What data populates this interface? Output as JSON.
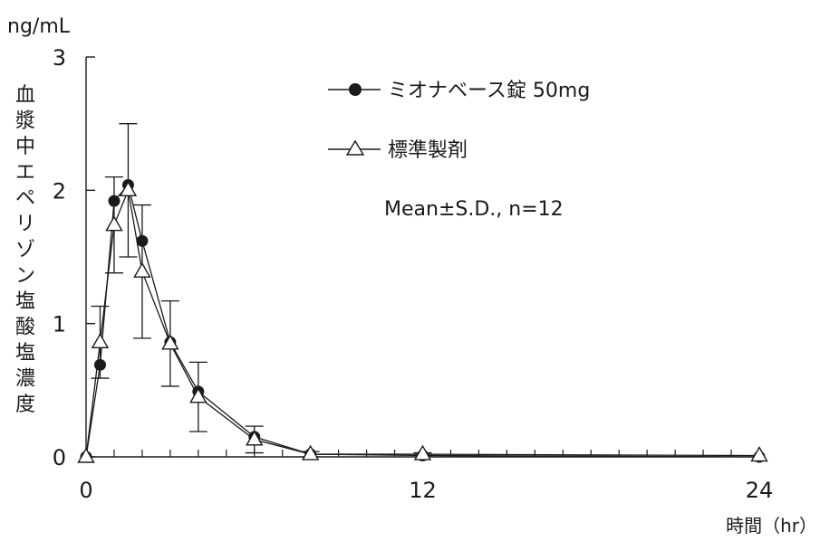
{
  "chart_data": {
    "type": "line",
    "ylabel_unit": "ng/mL",
    "ylabel": "血漿中エペリゾン塩酸塩濃度",
    "xlabel": "時間（hr）",
    "xlim": [
      0,
      24
    ],
    "ylim": [
      0,
      3
    ],
    "xticks": [
      0,
      12,
      24
    ],
    "yticks": [
      0,
      1,
      2,
      3
    ],
    "x_minor_ticks": [
      1,
      2,
      3,
      4,
      5,
      6,
      7,
      8,
      9,
      10,
      11,
      13,
      14,
      15,
      16,
      17,
      18,
      19,
      20,
      21,
      22,
      23
    ],
    "annotation": "Mean±S.D., n=12",
    "series": [
      {
        "name": "ミオナベース錠 50mg",
        "marker": "filled-circle",
        "color": "#1a1a1a",
        "x": [
          0,
          0.5,
          1,
          1.5,
          2,
          3,
          4,
          6,
          8,
          12,
          24
        ],
        "y": [
          0,
          0.69,
          1.92,
          2.04,
          1.62,
          0.86,
          0.49,
          0.15,
          0.02,
          0.01,
          0.0
        ]
      },
      {
        "name": "標準製剤",
        "marker": "open-triangle",
        "color": "#1a1a1a",
        "x": [
          0,
          0.5,
          1,
          1.5,
          2,
          3,
          4,
          6,
          8,
          12,
          24
        ],
        "y": [
          0,
          0.86,
          1.74,
          2.0,
          1.39,
          0.85,
          0.45,
          0.13,
          0.02,
          0.02,
          0.01
        ],
        "error": [
          0,
          0.27,
          0.36,
          0.5,
          0.5,
          0.32,
          0.26,
          0.1,
          0.02,
          0.01,
          0.0
        ]
      }
    ]
  }
}
